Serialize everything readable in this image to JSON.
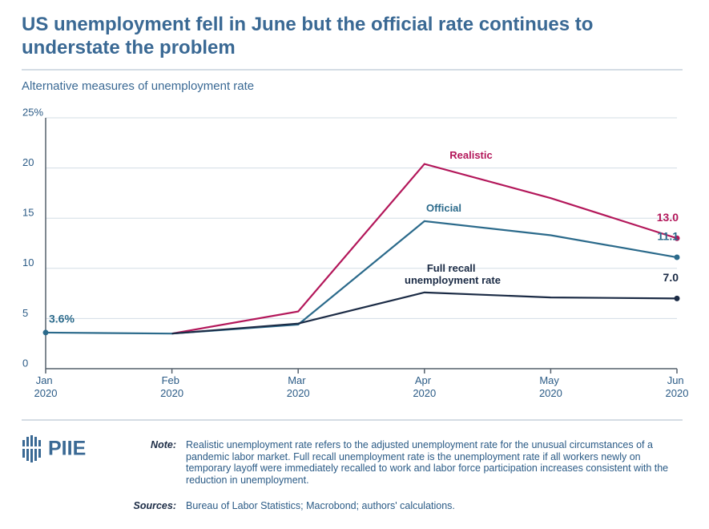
{
  "title": "US unemployment fell in June but the official rate continues to understate the problem",
  "logo": "PIIE",
  "note": {
    "label": "Note:",
    "text": "Realistic unemployment rate refers to the adjusted unemployment rate for the unusual circumstances of a pandemic labor market. Full recall unemployment rate is the unemployment rate if all workers newly on temporary layoff were immediately recalled to work and labor force participation increases consistent with the reduction in unemployment."
  },
  "sources": {
    "label": "Sources:",
    "text": "Bureau of Labor Statistics; Macrobond; authors' calculations."
  },
  "chart_data": {
    "type": "line",
    "subtitle": "Alternative measures of unemployment rate",
    "categories": [
      "Jan 2020",
      "Feb 2020",
      "Mar 2020",
      "Apr 2020",
      "May 2020",
      "Jun 2020"
    ],
    "series": [
      {
        "name": "Realistic",
        "color": "#b3175a",
        "values": [
          null,
          3.5,
          5.7,
          20.4,
          17.0,
          13.0
        ],
        "value_labels": [
          null,
          null,
          null,
          null,
          null,
          "13.0"
        ]
      },
      {
        "name": "Official",
        "color": "#2b6a8b",
        "values": [
          3.6,
          3.5,
          4.4,
          14.7,
          13.3,
          11.1
        ],
        "value_labels": [
          "3.6%",
          null,
          null,
          null,
          null,
          "11.1"
        ]
      },
      {
        "name": "Full recall unemployment rate",
        "color": "#1b2b45",
        "values": [
          null,
          3.5,
          4.5,
          7.6,
          7.1,
          7.0
        ],
        "value_labels": [
          null,
          null,
          null,
          null,
          null,
          "7.0"
        ]
      }
    ],
    "ylim": [
      0,
      25
    ],
    "yticks": [
      0,
      5,
      10,
      15,
      20,
      {
        "value": 25,
        "label": "25%"
      }
    ],
    "grid": true
  }
}
